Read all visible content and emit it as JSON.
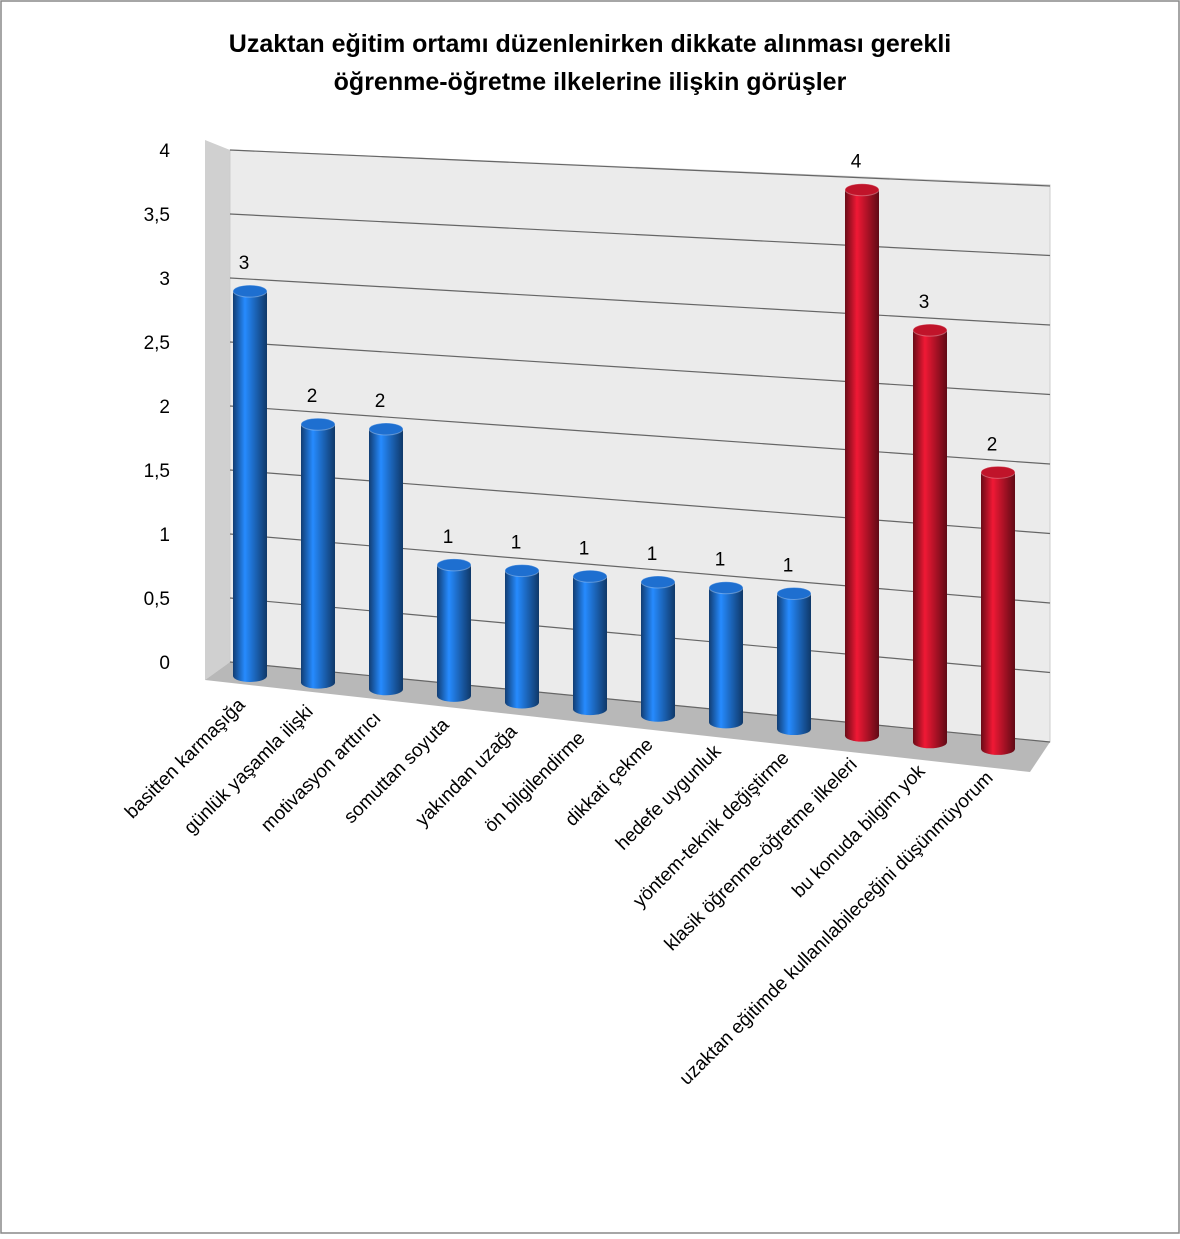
{
  "chart_data": {
    "type": "bar",
    "title": [
      "Uzaktan eğitim ortamı düzenlenirken dikkate alınması gerekli",
      "öğrenme-öğretme ilkelerine ilişkin görüşler"
    ],
    "categories": [
      "basitten karmaşığa",
      "günlük yaşamla ilişki",
      "motivasyon arttırıcı",
      "somuttan soyuta",
      "yakından uzağa",
      "ön bilgilendirme",
      "dikkati çekme",
      "hedefe uygunluk",
      "yöntem-teknik değiştirme",
      "klasik öğrenme-öğretme ilkeleri",
      "bu konuda bilgim yok",
      "uzaktan eğitimde kullanılabileceğini düşünmüyorum"
    ],
    "series": [
      {
        "color": "#1e6fd0",
        "values": [
          3,
          2,
          2,
          1,
          1,
          1,
          1,
          1,
          1,
          null,
          null,
          null
        ]
      },
      {
        "color": "#c0142a",
        "values": [
          null,
          null,
          null,
          null,
          null,
          null,
          null,
          null,
          null,
          4,
          3,
          2
        ]
      }
    ],
    "ylim": [
      0,
      4
    ],
    "yticks": [
      0,
      {
        "value": 0.5,
        "label": "0,5"
      },
      1,
      {
        "value": 1.5,
        "label": "1,5"
      },
      2,
      {
        "value": 2.5,
        "label": "2,5"
      },
      3,
      {
        "value": 3.5,
        "label": "3,5"
      },
      4
    ],
    "grid": true
  }
}
